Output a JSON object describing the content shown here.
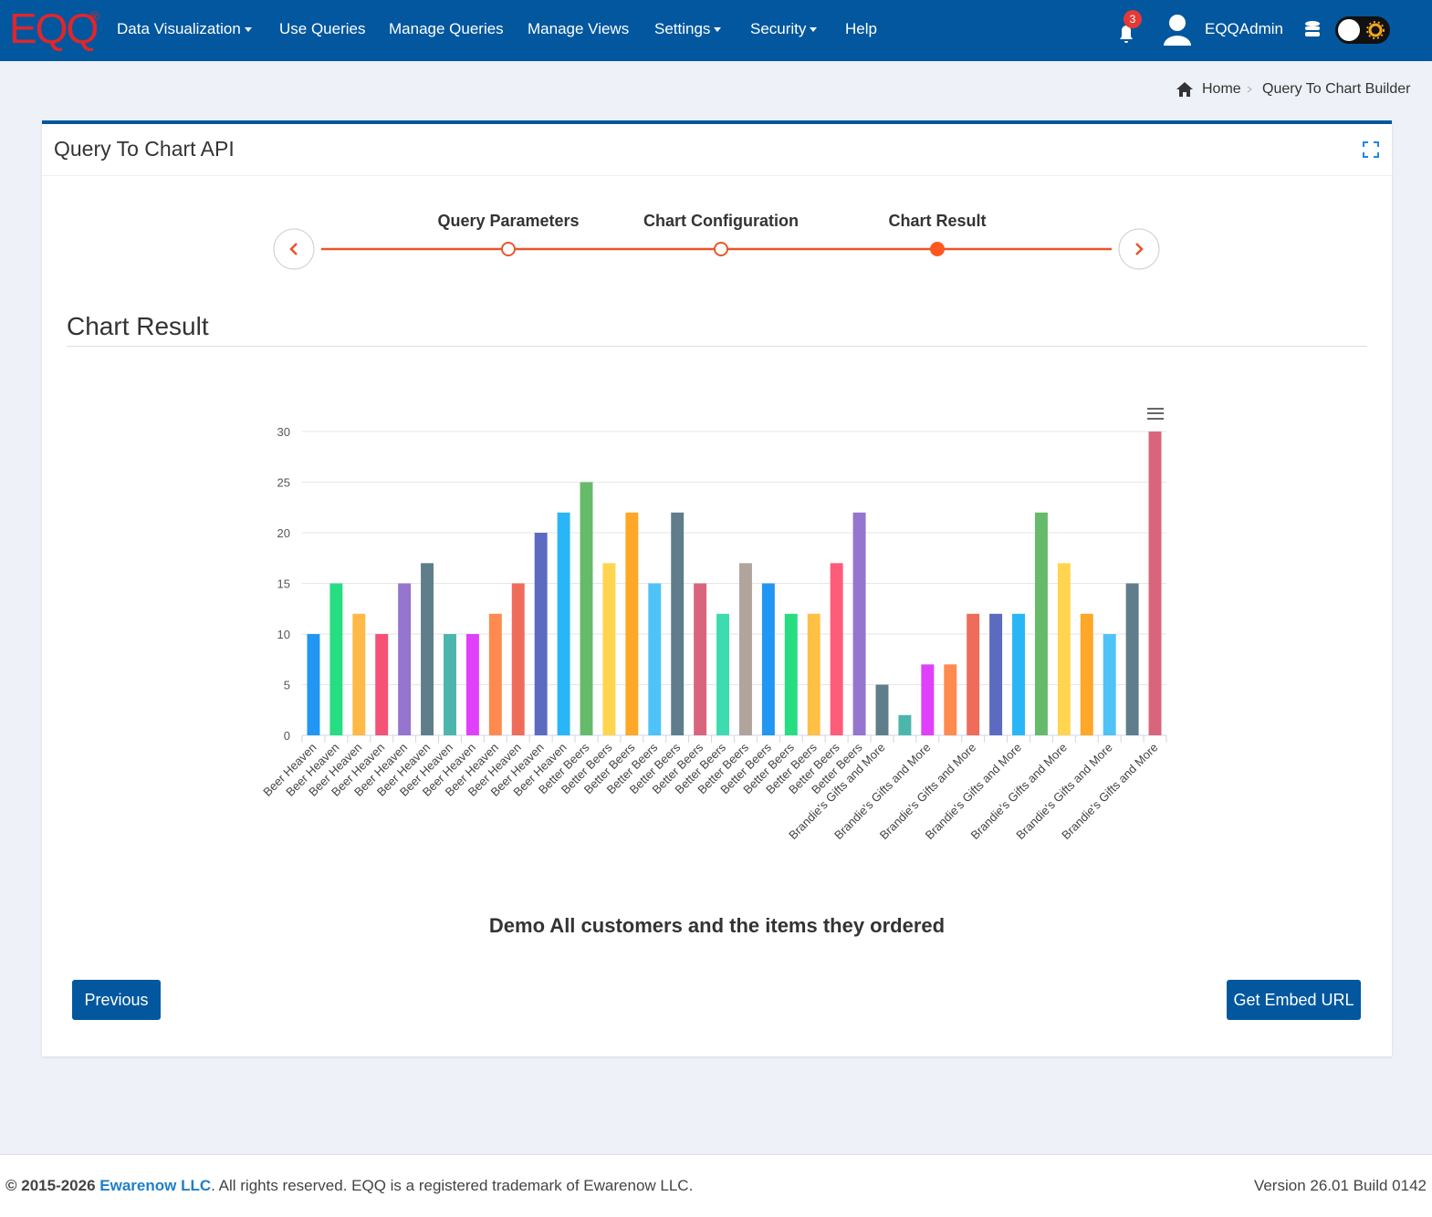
{
  "nav": {
    "logo": "EQQ",
    "logo_mark": "®",
    "items": [
      "Data Visualization",
      "Use Queries",
      "Manage Queries",
      "Manage Views",
      "Settings",
      "Security",
      "Help"
    ],
    "notifications": 3,
    "user": "EQQAdmin"
  },
  "breadcrumb": {
    "home": "Home",
    "current": "Query To Chart Builder"
  },
  "card": {
    "title": "Query To Chart API",
    "steps": [
      "Query Parameters",
      "Chart Configuration",
      "Chart Result"
    ],
    "section_title": "Chart Result",
    "buttons": {
      "previous": "Previous",
      "embed": "Get Embed URL"
    }
  },
  "chart_data": {
    "type": "bar",
    "title": "Demo All customers and the items they ordered",
    "categories": [
      "Beer Heaven",
      "Beer Heaven",
      "Beer Heaven",
      "Beer Heaven",
      "Beer Heaven",
      "Beer Heaven",
      "Beer Heaven",
      "Beer Heaven",
      "Beer Heaven",
      "Beer Heaven",
      "Beer Heaven",
      "Beer Heaven",
      "Better Beers",
      "Better Beers",
      "Better Beers",
      "Better Beers",
      "Better Beers",
      "Better Beers",
      "Better Beers",
      "Better Beers",
      "Better Beers",
      "Better Beers",
      "Better Beers",
      "Better Beers",
      "Better Beers",
      "Brandie's Gifts and More",
      null,
      "Brandie's Gifts and More",
      null,
      "Brandie's Gifts and More",
      null,
      "Brandie's Gifts and More",
      null,
      "Brandie's Gifts and More",
      null,
      "Brandie's Gifts and More",
      null,
      "Brandie's Gifts and More"
    ],
    "values": [
      10,
      15,
      12,
      10,
      15,
      17,
      10,
      10,
      12,
      15,
      20,
      22,
      25,
      17,
      22,
      15,
      22,
      15,
      12,
      17,
      15,
      12,
      12,
      17,
      22,
      5,
      2,
      7,
      7,
      12,
      12,
      12,
      22,
      17,
      12,
      10,
      15,
      30
    ],
    "colors": [
      "#2196f3",
      "#26de81",
      "#ffb946",
      "#f65275",
      "#9575cd",
      "#607d8b",
      "#4db6ac",
      "#e040fb",
      "#ff8a50",
      "#ef6c5b",
      "#5c6bc0",
      "#29b6f6",
      "#66bb6a",
      "#ffd54f",
      "#ffa726",
      "#4fc3f7",
      "#607d8b",
      "#d9657c",
      "#3ddbb0",
      "#b0a49c",
      "#2196f3",
      "#26de81",
      "#ffc046",
      "#ff5c7a",
      "#9575cd",
      "#607d8b",
      "#4db6ac",
      "#e040fb",
      "#ff8a50",
      "#ef6c5b",
      "#5c6bc0",
      "#29b6f6",
      "#66bb6a",
      "#ffd54f",
      "#ffa726",
      "#4fc3f7",
      "#607d8b",
      "#d9657c"
    ],
    "ylim": [
      0,
      30
    ],
    "yticks": [
      0,
      5,
      10,
      15,
      20,
      25,
      30
    ],
    "grid": true
  },
  "footer": {
    "copyright": "© 2015-2026",
    "company": "Ewarenow LLC",
    "notice": ". All rights reserved. EQQ is a registered trademark of Ewarenow LLC.",
    "version": "Version 26.01 Build 0142"
  }
}
